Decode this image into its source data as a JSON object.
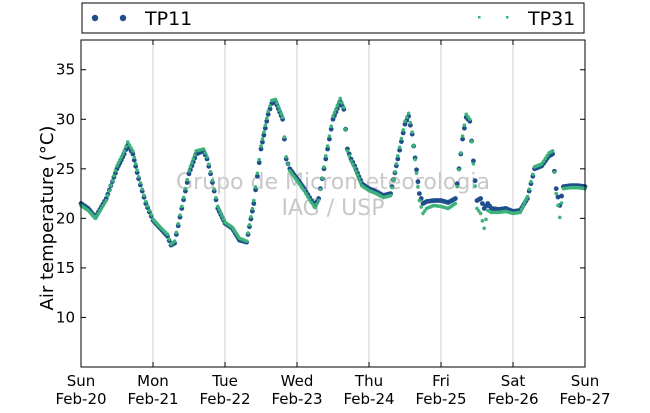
{
  "watermark": {
    "line1": "Grupo de Micrometeorologia",
    "line2": "IAG / USP"
  },
  "chart_data": {
    "type": "scatter",
    "ylabel": "Air temperature (°C)",
    "ylim": [
      5,
      38
    ],
    "yticks": [
      10,
      15,
      20,
      25,
      30,
      35
    ],
    "xlim": [
      0,
      7
    ],
    "xticks": [
      {
        "x": 0,
        "day": "Sun",
        "date": "Feb-20"
      },
      {
        "x": 1,
        "day": "Mon",
        "date": "Feb-21"
      },
      {
        "x": 2,
        "day": "Tue",
        "date": "Feb-22"
      },
      {
        "x": 3,
        "day": "Wed",
        "date": "Feb-23"
      },
      {
        "x": 4,
        "day": "Thu",
        "date": "Feb-24"
      },
      {
        "x": 5,
        "day": "Fri",
        "date": "Feb-25"
      },
      {
        "x": 6,
        "day": "Sat",
        "date": "Feb-26"
      },
      {
        "x": 7,
        "day": "Sun",
        "date": "Feb-27"
      }
    ],
    "grid": "vertical",
    "legend_position": "top",
    "series": [
      {
        "name": "TP11",
        "color": "#1f4e8c",
        "x": [
          0.0,
          0.1,
          0.2,
          0.35,
          0.5,
          0.6,
          0.65,
          0.72,
          0.8,
          0.9,
          1.0,
          1.1,
          1.2,
          1.25,
          1.3,
          1.4,
          1.5,
          1.6,
          1.7,
          1.75,
          1.8,
          1.9,
          2.0,
          2.1,
          2.2,
          2.3,
          2.4,
          2.5,
          2.6,
          2.65,
          2.7,
          2.8,
          2.85,
          2.9,
          3.0,
          3.1,
          3.2,
          3.25,
          3.3,
          3.4,
          3.5,
          3.6,
          3.65,
          3.7,
          3.75,
          3.8,
          3.9,
          4.0,
          4.1,
          4.2,
          4.3,
          4.4,
          4.5,
          4.55,
          4.6,
          4.7,
          4.75,
          4.8,
          4.9,
          5.0,
          5.1,
          5.2,
          5.3,
          5.35,
          5.4,
          5.5,
          5.55,
          5.6,
          5.65,
          5.7,
          5.8,
          5.9,
          6.0,
          6.1,
          6.2,
          6.3,
          6.4,
          6.5,
          6.55,
          6.6,
          6.65,
          6.7,
          6.8,
          6.9,
          7.0
        ],
        "values": [
          21.5,
          21.0,
          20.1,
          22.0,
          25.0,
          26.5,
          27.4,
          26.5,
          24.0,
          21.5,
          19.8,
          19.0,
          18.2,
          17.3,
          17.5,
          21.0,
          24.5,
          26.5,
          26.8,
          26.0,
          24.5,
          21.0,
          19.5,
          19.0,
          17.8,
          17.6,
          21.5,
          27.0,
          30.5,
          31.6,
          31.8,
          30.0,
          26.0,
          25.0,
          24.0,
          23.0,
          21.8,
          21.3,
          22.0,
          26.0,
          30.0,
          31.8,
          31.0,
          27.0,
          26.0,
          25.3,
          23.5,
          23.0,
          22.7,
          22.3,
          22.5,
          26.0,
          29.5,
          30.3,
          28.5,
          22.5,
          21.5,
          21.7,
          21.8,
          21.8,
          21.6,
          22.0,
          28.0,
          30.2,
          29.8,
          21.8,
          22.0,
          21.0,
          21.5,
          21.0,
          20.9,
          21.0,
          20.7,
          20.8,
          22.0,
          25.0,
          25.3,
          26.3,
          26.5,
          23.0,
          21.3,
          23.2,
          23.3,
          23.3,
          23.2
        ]
      },
      {
        "name": "TP31",
        "color": "#3cb37a",
        "x": [
          0.0,
          0.1,
          0.2,
          0.35,
          0.5,
          0.6,
          0.65,
          0.72,
          0.8,
          0.9,
          1.0,
          1.1,
          1.2,
          1.25,
          1.3,
          1.4,
          1.5,
          1.6,
          1.7,
          1.75,
          1.8,
          1.9,
          2.0,
          2.1,
          2.2,
          2.3,
          2.4,
          2.5,
          2.6,
          2.65,
          2.7,
          2.8,
          2.85,
          2.9,
          3.0,
          3.1,
          3.2,
          3.25,
          3.3,
          3.4,
          3.5,
          3.6,
          3.65,
          3.7,
          3.75,
          3.8,
          3.9,
          4.0,
          4.1,
          4.2,
          4.3,
          4.4,
          4.5,
          4.55,
          4.6,
          4.7,
          4.75,
          4.8,
          4.9,
          5.0,
          5.1,
          5.2,
          5.3,
          5.35,
          5.4,
          5.5,
          5.55,
          5.6,
          5.65,
          5.7,
          5.8,
          5.9,
          6.0,
          6.1,
          6.2,
          6.3,
          6.4,
          6.5,
          6.55,
          6.6,
          6.65,
          6.7,
          6.8,
          6.9,
          7.0
        ],
        "values": [
          21.3,
          20.8,
          20.0,
          21.8,
          25.3,
          26.8,
          27.7,
          26.8,
          24.2,
          21.7,
          19.9,
          19.1,
          18.4,
          17.4,
          17.7,
          21.2,
          24.8,
          26.8,
          27.0,
          26.2,
          24.7,
          21.2,
          19.6,
          19.1,
          18.0,
          17.7,
          21.8,
          27.3,
          30.8,
          31.9,
          32.0,
          30.2,
          26.2,
          24.8,
          23.8,
          22.8,
          21.6,
          21.1,
          21.8,
          26.3,
          30.3,
          32.1,
          31.2,
          26.8,
          25.8,
          25.1,
          23.3,
          22.8,
          22.5,
          22.1,
          22.3,
          26.3,
          29.8,
          30.6,
          28.7,
          21.8,
          20.5,
          21.0,
          21.3,
          21.2,
          21.0,
          21.5,
          28.3,
          30.5,
          30.0,
          21.0,
          20.5,
          19.0,
          20.8,
          20.6,
          20.6,
          20.7,
          20.5,
          20.6,
          22.2,
          25.2,
          25.5,
          26.6,
          26.8,
          22.5,
          20.1,
          23.0,
          23.1,
          23.1,
          23.0
        ]
      }
    ]
  }
}
